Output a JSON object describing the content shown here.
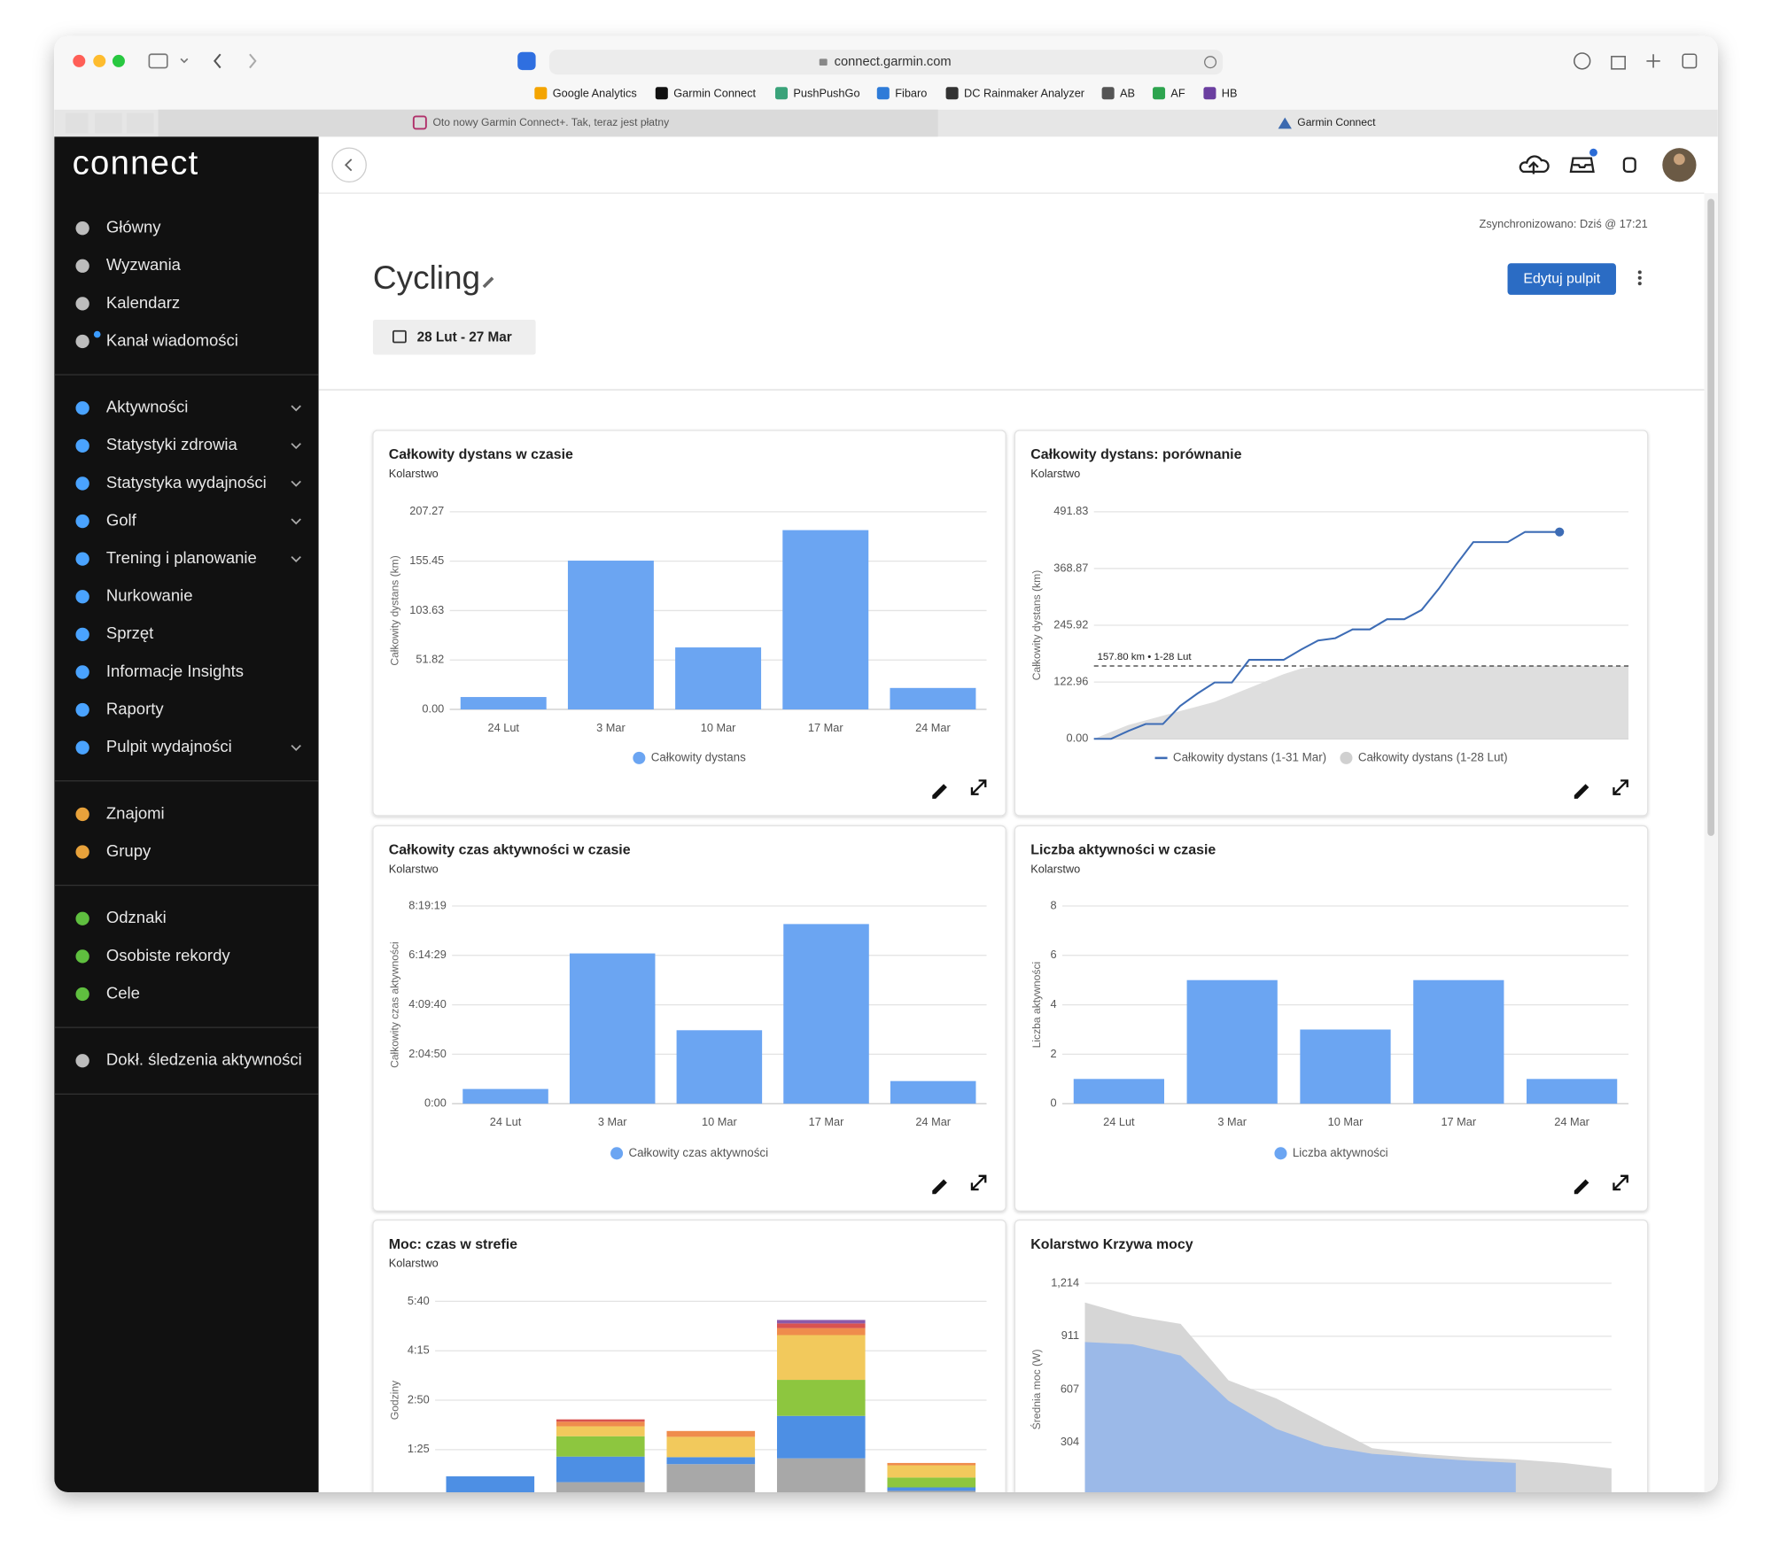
{
  "browser": {
    "url": "connect.garmin.com",
    "bookmarks": [
      "Google Analytics",
      "Garmin Connect",
      "PushPushGo",
      "Fibaro",
      "DC Rainmaker Analyzer",
      "AB",
      "AF",
      "HB"
    ],
    "tabs": [
      "Oto nowy Garmin Connect+. Tak, teraz jest płatny",
      "Garmin Connect"
    ]
  },
  "sidebar": {
    "logo": "connect",
    "groups": [
      [
        {
          "label": "Główny"
        },
        {
          "label": "Wyzwania"
        },
        {
          "label": "Kalendarz"
        },
        {
          "label": "Kanał wiadomości"
        }
      ],
      [
        {
          "label": "Aktywności",
          "expandable": true
        },
        {
          "label": "Statystyki zdrowia",
          "expandable": true
        },
        {
          "label": "Statystyka wydajności",
          "expandable": true
        },
        {
          "label": "Golf",
          "expandable": true
        },
        {
          "label": "Trening i planowanie",
          "expandable": true
        },
        {
          "label": "Nurkowanie"
        },
        {
          "label": "Sprzęt"
        },
        {
          "label": "Informacje Insights"
        },
        {
          "label": "Raporty"
        },
        {
          "label": "Pulpit wydajności",
          "expandable": true
        }
      ],
      [
        {
          "label": "Znajomi"
        },
        {
          "label": "Grupy"
        }
      ],
      [
        {
          "label": "Odznaki"
        },
        {
          "label": "Osobiste rekordy"
        },
        {
          "label": "Cele"
        }
      ],
      [
        {
          "label": "Dokł. śledzenia aktywności"
        }
      ]
    ]
  },
  "header": {
    "sync": "Zsynchronizowano: Dziś @ 17:21",
    "title": "Cycling",
    "date_range": "28 Lut - 27 Mar",
    "edit_button": "Edytuj pulpit"
  },
  "cards": [
    {
      "title": "Całkowity dystans w czasie",
      "subtitle": "Kolarstwo",
      "chart_data": {
        "type": "bar",
        "categories": [
          "24 Lut",
          "3 Mar",
          "10 Mar",
          "17 Mar",
          "24 Mar"
        ],
        "series": [
          {
            "name": "Całkowity dystans",
            "color": "#6ba5f2",
            "values": [
              13,
              156,
              65,
              188,
              22.5
            ]
          }
        ],
        "y_label": "Całkowity dystans (km)",
        "ylim": [
          0,
          207.27
        ],
        "yticks": [
          {
            "value": 0,
            "label": "0.00"
          },
          51.82,
          103.63,
          155.45,
          207.27
        ],
        "grid": true
      }
    },
    {
      "title": "Całkowity dystans: porównanie",
      "subtitle": "Kolarstwo",
      "chart_data": {
        "type": "line",
        "series": [
          {
            "name": "Całkowity dystans (1-31 Mar)",
            "color": "#3d6cb5",
            "values": [
              0,
              0,
              17,
              32,
              32,
              71,
              98,
              122,
              122,
              171,
              171,
              171,
              193,
              213,
              218,
              237,
              237,
              259,
              259,
              279,
              325,
              377,
              426,
              426,
              426,
              448,
              448,
              448,
              null,
              null,
              null,
              null
            ],
            "end_marker": true
          },
          {
            "name": "Całkowity dystans (1-28 Lut)",
            "color": "#dedede",
            "type": "area",
            "values": [
              0,
              15,
              30,
              40,
              50,
              60,
              70,
              80,
              95,
              110,
              125,
              140,
              152,
              157.8,
              157.8,
              157.8,
              157.8,
              157.8,
              157.8,
              157.8,
              157.8,
              157.8,
              157.8,
              157.8,
              157.8,
              157.8,
              157.8,
              157.8,
              157.8,
              157.8,
              157.8,
              157.8
            ]
          }
        ],
        "annotation": {
          "value": 157.8,
          "label": "157.80 km • 1-28 Lut"
        },
        "y_label": "Całkowity dystans (km)",
        "ylim": [
          0,
          491.83
        ],
        "yticks": [
          {
            "value": 0,
            "label": "0.00"
          },
          122.96,
          245.92,
          368.87,
          491.83
        ],
        "grid": true
      }
    },
    {
      "title": "Całkowity czas aktywności w czasie",
      "subtitle": "Kolarstwo",
      "chart_data": {
        "type": "bar",
        "categories": [
          "24 Lut",
          "3 Mar",
          "10 Mar",
          "17 Mar",
          "24 Mar"
        ],
        "series": [
          {
            "name": "Całkowity czas aktywności",
            "color": "#6ba5f2",
            "values": [
              2226,
              22768,
              11128,
              27220,
              3424
            ]
          }
        ],
        "y_label": "Całkowity czas aktywności",
        "ylim": [
          0,
          29959
        ],
        "yticks": [
          {
            "value": 0,
            "label": "0:00"
          },
          {
            "value": 7490,
            "label": "2:04:50"
          },
          {
            "value": 14980,
            "label": "4:09:40"
          },
          {
            "value": 22469,
            "label": "6:14:29"
          },
          {
            "value": 29959,
            "label": "8:19:19"
          }
        ],
        "grid": true
      }
    },
    {
      "title": "Liczba aktywności w czasie",
      "subtitle": "Kolarstwo",
      "chart_data": {
        "type": "bar",
        "categories": [
          "24 Lut",
          "3 Mar",
          "10 Mar",
          "17 Mar",
          "24 Mar"
        ],
        "series": [
          {
            "name": "Liczba aktywności",
            "color": "#6ba5f2",
            "values": [
              1,
              5,
              3,
              5,
              1
            ]
          }
        ],
        "y_label": "Liczba aktywności",
        "ylim": [
          0,
          8
        ],
        "yticks": [
          0,
          2,
          4,
          6,
          8
        ],
        "grid": true
      }
    },
    {
      "title": "Moc: czas w strefie",
      "subtitle": "Kolarstwo",
      "chart_data": {
        "type": "stacked_bar",
        "categories": [
          null,
          null,
          null,
          null,
          null
        ],
        "series": [
          {
            "color": "#a8a8a8",
            "values": [
              0,
              29,
              60,
              70,
              14
            ]
          },
          {
            "color": "#4d8fe4",
            "values": [
              39,
              44,
              12,
              73,
              6
            ]
          },
          {
            "color": "#8dc63f",
            "values": [
              0,
              35,
              0,
              62,
              17
            ]
          },
          {
            "color": "#f2c95c",
            "values": [
              0,
              17,
              35,
              77,
              21
            ]
          },
          {
            "color": "#ef8c4c",
            "values": [
              0,
              8,
              10,
              12,
              4
            ]
          },
          {
            "color": "#d9534f",
            "values": [
              0,
              4,
              0,
              8,
              0
            ]
          },
          {
            "color": "#8b5aa8",
            "values": [
              0,
              0,
              0,
              6,
              0
            ]
          }
        ],
        "y_label": "Godziny",
        "ylim": [
          0,
          340
        ],
        "yticks": [
          {
            "value": 85,
            "label": "1:25"
          },
          {
            "value": 170,
            "label": "2:50"
          },
          {
            "value": 255,
            "label": "4:15"
          },
          {
            "value": 340,
            "label": "5:40"
          }
        ],
        "grid": true
      }
    },
    {
      "title": "Kolarstwo Krzywa mocy",
      "chart_data": {
        "type": "area",
        "series": [
          {
            "color": "#d6d6d6",
            "values": [
              1104,
              1027,
              982,
              659,
              555,
              413,
              271,
              239,
              220,
              207,
              187,
              155
            ]
          },
          {
            "color": "#9bb9e8",
            "values": [
              878,
              865,
              801,
              542,
              381,
              284,
              239,
              220,
              200,
              187,
              null,
              null
            ]
          }
        ],
        "y_label": "Średnia moc (W)",
        "ylim": [
          0,
          1214
        ],
        "yticks": [
          304,
          607,
          911,
          {
            "value": 1214,
            "label": "1,214"
          }
        ],
        "grid": true
      }
    }
  ]
}
